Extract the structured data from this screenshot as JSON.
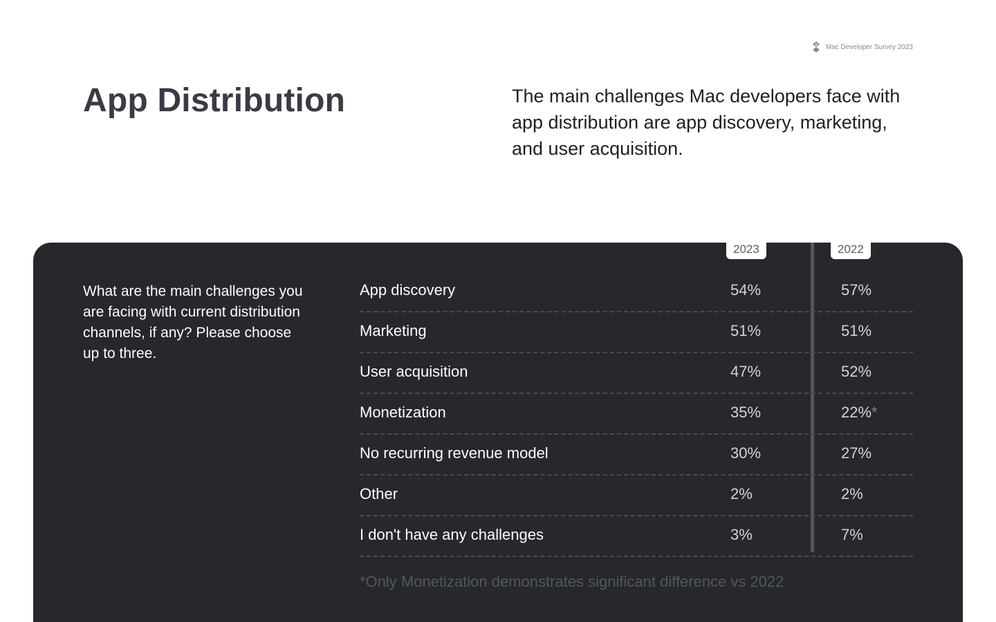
{
  "header": {
    "brand_label": "Mac Developer Survey 2023",
    "brand_icon": "diamond-logo-icon"
  },
  "title": "App Distribution",
  "summary": "The main challenges Mac developers face with app distribution are app discovery, marketing, and user acquisition.",
  "question": "What are the main challenges you are facing with current distribution channels, if any? Please choose up to three.",
  "footnote": "*Only Monetization demonstrates significant difference vs 2022",
  "colors": {
    "panel_bg": "#27272c",
    "title": "#3b3a45",
    "divider": "#4f5a56",
    "footnote": "#4f5a56"
  },
  "chart_data": {
    "type": "table",
    "columns": [
      "2023",
      "2022"
    ],
    "rows": [
      {
        "label": "App discovery",
        "v2023": "54%",
        "v2022": "57%",
        "mark": ""
      },
      {
        "label": "Marketing",
        "v2023": "51%",
        "v2022": "51%",
        "mark": ""
      },
      {
        "label": "User acquisition",
        "v2023": "47%",
        "v2022": "52%",
        "mark": ""
      },
      {
        "label": "Monetization",
        "v2023": "35%",
        "v2022": "22%",
        "mark": "*"
      },
      {
        "label": "No recurring revenue model",
        "v2023": "30%",
        "v2022": "27%",
        "mark": ""
      },
      {
        "label": "Other",
        "v2023": "2%",
        "v2022": "2%",
        "mark": ""
      },
      {
        "label": "I don't have any challenges",
        "v2023": "3%",
        "v2022": "7%",
        "mark": ""
      }
    ]
  }
}
